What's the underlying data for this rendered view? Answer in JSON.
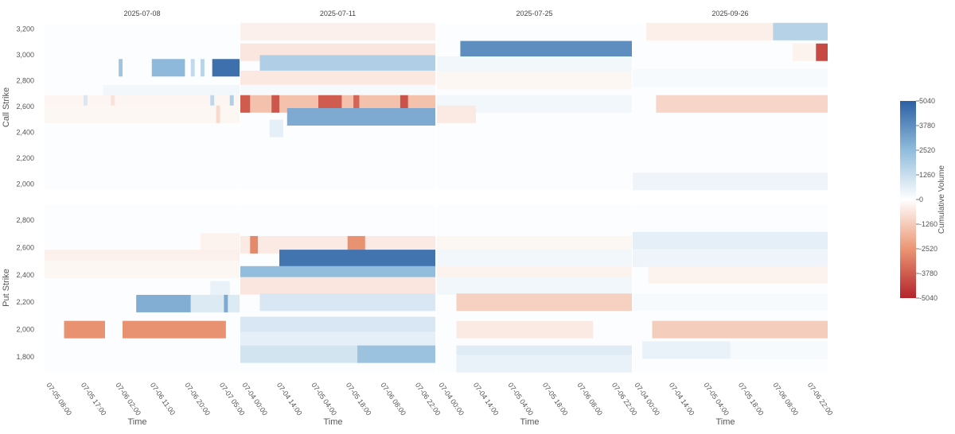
{
  "chart_data": {
    "type": "heatmap",
    "colorbar": {
      "title": "Cumulative Volume",
      "ticks": [
        5040,
        3780,
        2520,
        1260,
        0,
        -1260,
        -2520,
        -3780,
        -5040
      ],
      "range": [
        -5040,
        5040
      ]
    },
    "x_axis_title": "Time",
    "y_axis_titles": {
      "call": "Call Strike",
      "put": "Put Strike"
    },
    "call_strike_ticks": [
      "3,200",
      "3,000",
      "2,800",
      "2,600",
      "2,400",
      "2,200",
      "2,000"
    ],
    "put_strike_ticks": [
      "2,800",
      "2,600",
      "2,400",
      "2,200",
      "2,000",
      "1,800"
    ],
    "call_range": [
      1960,
      3240
    ],
    "put_range": [
      1690,
      2910
    ],
    "panels": [
      {
        "expiry": "2025-07-08",
        "time_ticks": [
          "07-05 08:00",
          "07-05 17:00",
          "07-06 02:00",
          "07-06 11:00",
          "07-06 20:00",
          "07-07 05:00"
        ],
        "call_cells": [
          {
            "t0": 0.38,
            "t1": 0.4,
            "strike": 2900,
            "v": 2200
          },
          {
            "t0": 0.55,
            "t1": 0.72,
            "strike": 2900,
            "v": 2600
          },
          {
            "t0": 0.75,
            "t1": 0.77,
            "strike": 2900,
            "v": 1400
          },
          {
            "t0": 0.8,
            "t1": 0.82,
            "strike": 2900,
            "v": 1600
          },
          {
            "t0": 0.86,
            "t1": 1.0,
            "strike": 2900,
            "v": 4600
          },
          {
            "t0": 0.3,
            "t1": 1.0,
            "strike": 2700,
            "v": 300
          },
          {
            "t0": 0.0,
            "t1": 1.0,
            "strike": 2620,
            "v": -250
          },
          {
            "t0": 0.2,
            "t1": 0.22,
            "strike": 2620,
            "v": 900
          },
          {
            "t0": 0.34,
            "t1": 0.36,
            "strike": 2620,
            "v": -700
          },
          {
            "t0": 0.85,
            "t1": 0.87,
            "strike": 2620,
            "v": 1500
          },
          {
            "t0": 0.95,
            "t1": 0.97,
            "strike": 2620,
            "v": 1800
          },
          {
            "t0": 0.0,
            "t1": 1.0,
            "strike": 2540,
            "v": -200
          },
          {
            "t0": 0.88,
            "t1": 0.9,
            "strike": 2540,
            "v": -900
          }
        ],
        "put_cells": [
          {
            "t0": 0.8,
            "t1": 1.0,
            "strike": 2640,
            "v": -300
          },
          {
            "t0": 0.0,
            "t1": 1.0,
            "strike": 2520,
            "v": -350
          },
          {
            "t0": 0.0,
            "t1": 1.0,
            "strike": 2440,
            "v": -200
          },
          {
            "t0": 0.85,
            "t1": 0.95,
            "strike": 2290,
            "v": 500
          },
          {
            "t0": 0.47,
            "t1": 0.75,
            "strike": 2190,
            "v": 2900
          },
          {
            "t0": 0.75,
            "t1": 1.0,
            "strike": 2190,
            "v": 800
          },
          {
            "t0": 0.92,
            "t1": 0.94,
            "strike": 2190,
            "v": 3000
          },
          {
            "t0": 0.1,
            "t1": 0.31,
            "strike": 2000,
            "v": -2600
          },
          {
            "t0": 0.4,
            "t1": 0.93,
            "strike": 2000,
            "v": -2600
          }
        ]
      },
      {
        "expiry": "2025-07-11",
        "time_ticks": [
          "07-04 00:00",
          "07-04 14:00",
          "07-05 04:00",
          "07-05 18:00",
          "07-06 08:00",
          "07-06 22:00"
        ],
        "call_cells": [
          {
            "t0": 0.0,
            "t1": 1.0,
            "strike": 3180,
            "v": -350
          },
          {
            "t0": 0.0,
            "t1": 1.0,
            "strike": 3020,
            "v": -600
          },
          {
            "t0": 0.1,
            "t1": 1.0,
            "strike": 2930,
            "v": 1800
          },
          {
            "t0": 0.0,
            "t1": 1.0,
            "strike": 2810,
            "v": -550
          },
          {
            "t0": 0.0,
            "t1": 1.0,
            "strike": 2700,
            "v": 200
          },
          {
            "t0": 0.0,
            "t1": 1.0,
            "strike": 2620,
            "v": -1500
          },
          {
            "t0": 0.0,
            "t1": 0.05,
            "strike": 2620,
            "v": -3800
          },
          {
            "t0": 0.16,
            "t1": 0.2,
            "strike": 2620,
            "v": -3900
          },
          {
            "t0": 0.4,
            "t1": 0.52,
            "strike": 2620,
            "v": -3800
          },
          {
            "t0": 0.58,
            "t1": 0.61,
            "strike": 2620,
            "v": -3600
          },
          {
            "t0": 0.82,
            "t1": 0.86,
            "strike": 2620,
            "v": -4000
          },
          {
            "t0": 0.24,
            "t1": 1.0,
            "strike": 2520,
            "v": 3000
          },
          {
            "t0": 0.15,
            "t1": 0.22,
            "strike": 2430,
            "v": 600
          }
        ],
        "put_cells": [
          {
            "t0": 0.0,
            "t1": 1.0,
            "strike": 2620,
            "v": -500
          },
          {
            "t0": 0.05,
            "t1": 0.09,
            "strike": 2620,
            "v": -2800
          },
          {
            "t0": 0.55,
            "t1": 0.64,
            "strike": 2620,
            "v": -2600
          },
          {
            "t0": 0.2,
            "t1": 1.0,
            "strike": 2520,
            "v": 4500
          },
          {
            "t0": 0.0,
            "t1": 1.0,
            "strike": 2400,
            "v": 2500
          },
          {
            "t0": 0.0,
            "t1": 1.0,
            "strike": 2320,
            "v": -600
          },
          {
            "t0": 0.1,
            "t1": 1.0,
            "strike": 2200,
            "v": 900
          },
          {
            "t0": 0.0,
            "t1": 1.0,
            "strike": 2030,
            "v": 900
          },
          {
            "t0": 0.0,
            "t1": 1.0,
            "strike": 1920,
            "v": 600
          },
          {
            "t0": 0.0,
            "t1": 0.6,
            "strike": 1820,
            "v": 1000
          },
          {
            "t0": 0.6,
            "t1": 1.0,
            "strike": 1820,
            "v": 2300
          }
        ]
      },
      {
        "expiry": "2025-07-25",
        "time_ticks": [
          "07-04 00:00",
          "07-04 14:00",
          "07-05 04:00",
          "07-05 18:00",
          "07-06 08:00",
          "07-06 22:00"
        ],
        "call_cells": [
          {
            "t0": 0.12,
            "t1": 1.0,
            "strike": 3040,
            "v": 3800
          },
          {
            "t0": 0.0,
            "t1": 1.0,
            "strike": 2920,
            "v": 300
          },
          {
            "t0": 0.0,
            "t1": 1.0,
            "strike": 2800,
            "v": -200
          },
          {
            "t0": 0.0,
            "t1": 1.0,
            "strike": 2620,
            "v": 300
          },
          {
            "t0": 0.0,
            "t1": 0.2,
            "strike": 2540,
            "v": -500
          }
        ],
        "put_cells": [
          {
            "t0": 0.0,
            "t1": 1.0,
            "strike": 2620,
            "v": -200
          },
          {
            "t0": 0.0,
            "t1": 1.0,
            "strike": 2520,
            "v": 300
          },
          {
            "t0": 0.0,
            "t1": 1.0,
            "strike": 2400,
            "v": -300
          },
          {
            "t0": 0.0,
            "t1": 1.0,
            "strike": 2320,
            "v": 300
          },
          {
            "t0": 0.1,
            "t1": 1.0,
            "strike": 2200,
            "v": -1100
          },
          {
            "t0": 0.1,
            "t1": 0.8,
            "strike": 2000,
            "v": -500
          },
          {
            "t0": 0.1,
            "t1": 1.0,
            "strike": 1820,
            "v": 700
          },
          {
            "t0": 0.1,
            "t1": 1.0,
            "strike": 1750,
            "v": 500
          }
        ]
      },
      {
        "expiry": "2025-09-26",
        "time_ticks": [
          "07-04 00:00",
          "07-04 14:00",
          "07-05 04:00",
          "07-05 18:00",
          "07-06 08:00",
          "07-06 22:00"
        ],
        "call_cells": [
          {
            "t0": 0.07,
            "t1": 0.72,
            "strike": 3180,
            "v": -400
          },
          {
            "t0": 0.72,
            "t1": 1.0,
            "strike": 3180,
            "v": 1700
          },
          {
            "t0": 0.82,
            "t1": 0.94,
            "strike": 3020,
            "v": -300
          },
          {
            "t0": 0.94,
            "t1": 1.0,
            "strike": 3020,
            "v": -4200
          },
          {
            "t0": 0.0,
            "t1": 1.0,
            "strike": 2820,
            "v": 200
          },
          {
            "t0": 0.12,
            "t1": 1.0,
            "strike": 2620,
            "v": -1000
          },
          {
            "t0": 0.0,
            "t1": 1.0,
            "strike": 2020,
            "v": 400
          }
        ],
        "put_cells": [
          {
            "t0": 0.0,
            "t1": 1.0,
            "strike": 2650,
            "v": 600
          },
          {
            "t0": 0.0,
            "t1": 1.0,
            "strike": 2520,
            "v": 400
          },
          {
            "t0": 0.08,
            "t1": 1.0,
            "strike": 2400,
            "v": -300
          },
          {
            "t0": 0.0,
            "t1": 1.0,
            "strike": 2200,
            "v": 200
          },
          {
            "t0": 0.1,
            "t1": 1.0,
            "strike": 2000,
            "v": -1200
          },
          {
            "t0": 0.05,
            "t1": 0.5,
            "strike": 1850,
            "v": 500
          },
          {
            "t0": 0.5,
            "t1": 1.0,
            "strike": 1850,
            "v": 200
          }
        ]
      }
    ]
  }
}
